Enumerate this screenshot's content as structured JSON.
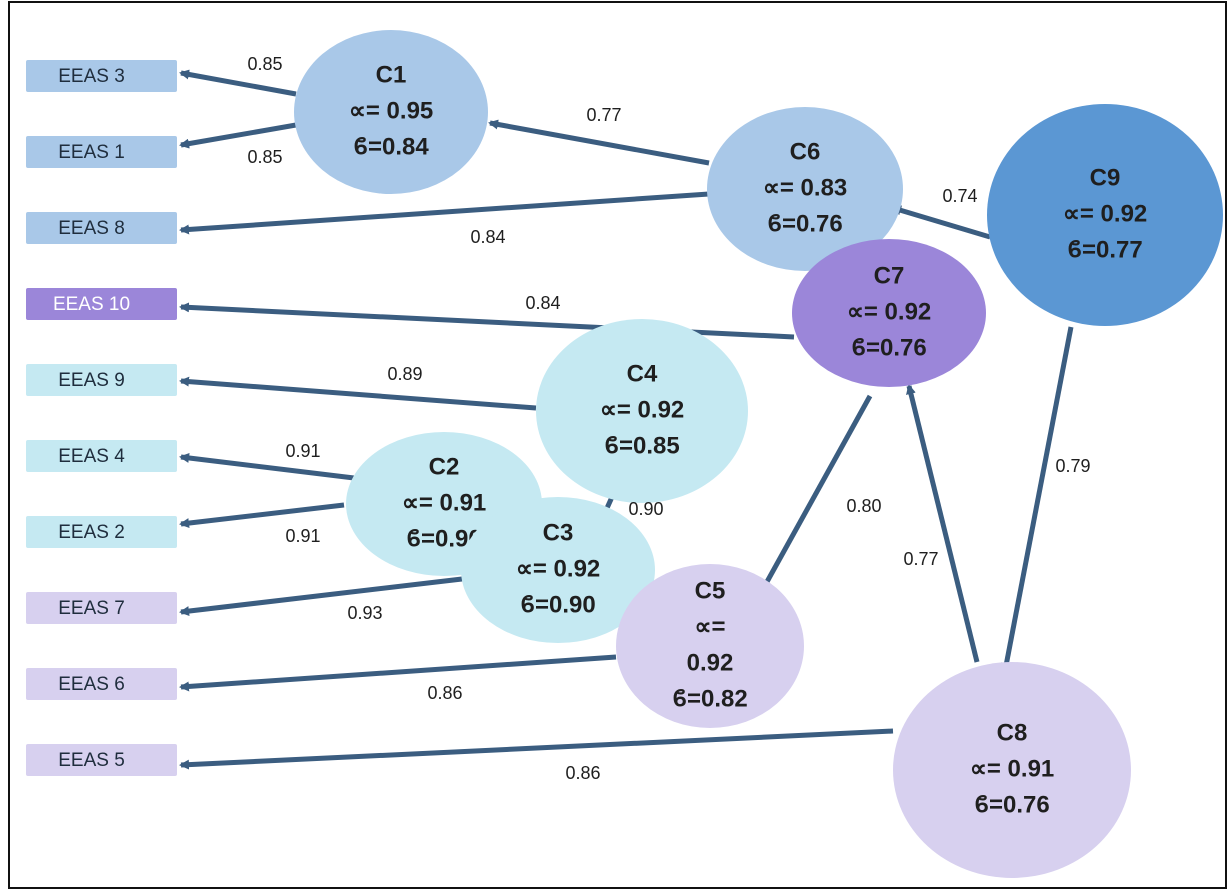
{
  "indicators": [
    {
      "id": "i3",
      "label": "EEAS 3",
      "color": "#a9c8e8"
    },
    {
      "id": "i1",
      "label": "EEAS 1",
      "color": "#a9c8e8"
    },
    {
      "id": "i8",
      "label": "EEAS 8",
      "color": "#a9c8e8"
    },
    {
      "id": "i10",
      "label": "EEAS 10",
      "color": "#9b86d9"
    },
    {
      "id": "i9",
      "label": "EEAS 9",
      "color": "#c5e9f2"
    },
    {
      "id": "i4",
      "label": "EEAS 4",
      "color": "#c5e9f2"
    },
    {
      "id": "i2",
      "label": "EEAS 2",
      "color": "#c5e9f2"
    },
    {
      "id": "i7",
      "label": "EEAS 7",
      "color": "#d7d0ef"
    },
    {
      "id": "i6",
      "label": "EEAS 6",
      "color": "#d7d0ef"
    },
    {
      "id": "i5",
      "label": "EEAS 5",
      "color": "#d7d0ef"
    }
  ],
  "constructs": [
    {
      "id": "C1",
      "lines": [
        "C1",
        "∝= 0.95",
        "ϐ=0.84"
      ],
      "color": "#a9c8e8"
    },
    {
      "id": "C6",
      "lines": [
        "C6",
        "∝= 0.83",
        "ϐ=0.76"
      ],
      "color": "#a9c8e8"
    },
    {
      "id": "C9",
      "lines": [
        "C9",
        "∝= 0.92",
        "ϐ=0.77"
      ],
      "color": "#5b97d3"
    },
    {
      "id": "C7",
      "lines": [
        "C7",
        "∝= 0.92",
        "ϐ=0.76"
      ],
      "color": "#9b86d9"
    },
    {
      "id": "C4",
      "lines": [
        "C4",
        "∝= 0.92",
        "ϐ=0.85"
      ],
      "color": "#c5e9f2"
    },
    {
      "id": "C2",
      "lines": [
        "C2",
        "∝= 0.91",
        "ϐ=0.90"
      ],
      "color": "#c5e9f2"
    },
    {
      "id": "C3",
      "lines": [
        "C3",
        "∝= 0.92",
        "ϐ=0.90"
      ],
      "color": "#c5e9f2"
    },
    {
      "id": "C5",
      "lines": [
        "C5",
        "∝=",
        "0.92",
        "ϐ=0.82"
      ],
      "color": "#d7d0ef"
    },
    {
      "id": "C8",
      "lines": [
        "C8",
        "∝= 0.91",
        "ϐ=0.76"
      ],
      "color": "#d7d0ef"
    }
  ],
  "edges": [
    {
      "from": "C1",
      "to": "i3",
      "label": "0.85"
    },
    {
      "from": "C1",
      "to": "i1",
      "label": "0.85"
    },
    {
      "from": "C6",
      "to": "C1",
      "label": "0.77"
    },
    {
      "from": "C6",
      "to": "i8",
      "label": "0.84"
    },
    {
      "from": "C9",
      "to": "C6",
      "label": "0.74"
    },
    {
      "from": "C7",
      "to": "i10",
      "label": "0.84"
    },
    {
      "from": "C4",
      "to": "i9",
      "label": "0.89"
    },
    {
      "from": "C2",
      "to": "i4",
      "label": "0.91"
    },
    {
      "from": "C2",
      "to": "i2",
      "label": "0.91"
    },
    {
      "from": "C4",
      "to": "C3",
      "label": "0.90"
    },
    {
      "from": "C3",
      "to": "i7",
      "label": "0.93"
    },
    {
      "from": "C7",
      "to": "C5",
      "label": "0.80"
    },
    {
      "from": "C5",
      "to": "i6",
      "label": "0.86"
    },
    {
      "from": "C8",
      "to": "C7",
      "label": "0.77"
    },
    {
      "from": "C9",
      "to": "C8",
      "label": "0.79"
    },
    {
      "from": "C8",
      "to": "i5",
      "label": "0.86"
    }
  ],
  "style": {
    "edge_color": "#3b5d80",
    "frame_color": "#111111"
  }
}
